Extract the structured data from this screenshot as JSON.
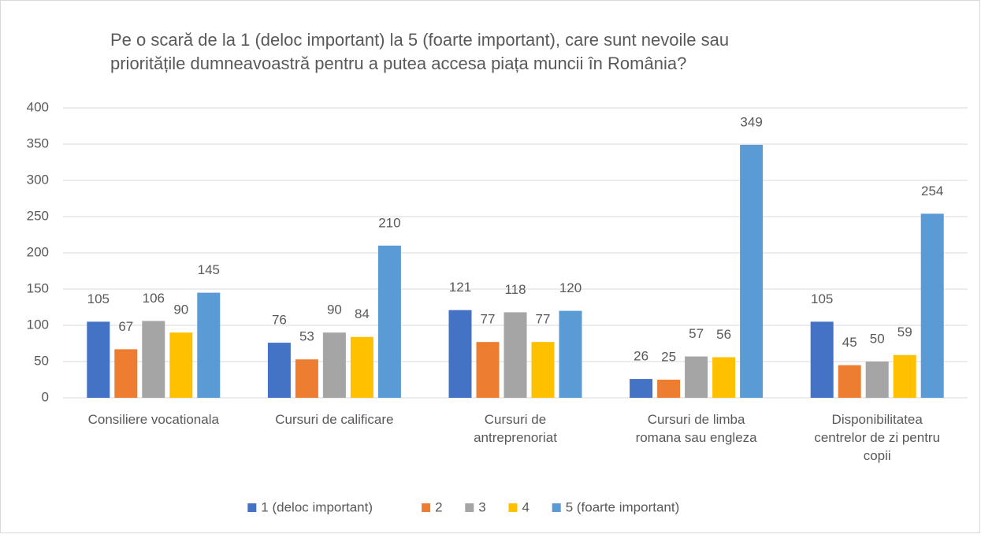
{
  "chart_data": {
    "type": "bar",
    "title": "Pe o scară de la 1 (deloc important) la 5 (foarte important), care sunt nevoile sau prioritățile dumneavoastră pentru a putea accesa piața muncii în România?",
    "categories": [
      "Consiliere vocationala",
      "Cursuri de calificare",
      "Cursuri de antreprenoriat",
      "Cursuri de limba romana sau engleza",
      "Disponibilitatea centrelor de zi pentru copii"
    ],
    "series": [
      {
        "name": "1 (deloc important)",
        "color": "#4472c4",
        "values": [
          105,
          76,
          121,
          26,
          105
        ]
      },
      {
        "name": "2",
        "color": "#ed7d31",
        "values": [
          67,
          53,
          77,
          25,
          45
        ]
      },
      {
        "name": "3",
        "color": "#a5a5a5",
        "values": [
          106,
          90,
          118,
          57,
          50
        ]
      },
      {
        "name": "4",
        "color": "#ffc000",
        "values": [
          90,
          84,
          77,
          56,
          59
        ]
      },
      {
        "name": "5 (foarte important)",
        "color": "#5b9bd5",
        "values": [
          145,
          210,
          120,
          349,
          254
        ]
      }
    ],
    "ylim": [
      0,
      400
    ],
    "yticks": [
      0,
      50,
      100,
      150,
      200,
      250,
      300,
      350,
      400
    ],
    "grid": true,
    "legend": "bottom"
  }
}
